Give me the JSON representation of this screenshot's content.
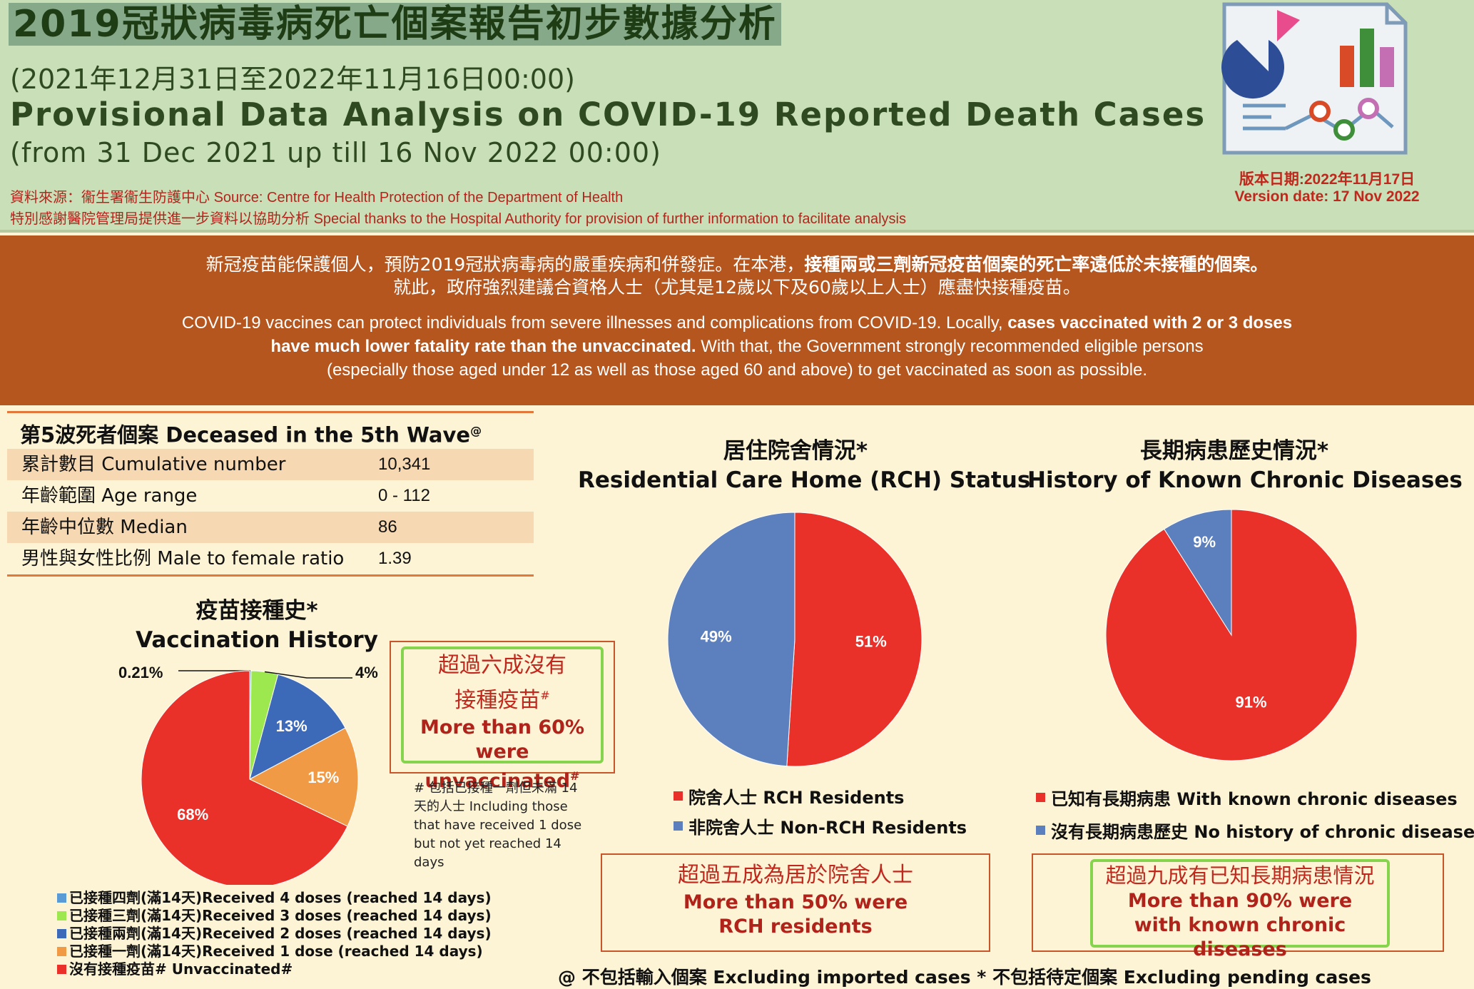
{
  "header": {
    "title_zh": "2019冠狀病毒病死亡個案報告初步數據分析",
    "period_zh": "(2021年12月31日至2022年11月16日00:00)",
    "title_en": "Provisional Data Analysis on COVID-19 Reported Death Cases",
    "period_en": "(from 31 Dec 2021 up till 16 Nov 2022 00:00)",
    "source_zh": "資料來源：衞生署衞生防護中心",
    "source_en": "Source: Centre for Health Protection of the Department of Health",
    "thanks_zh": "特別感謝醫院管理局提供進一步資料以協助分析",
    "thanks_en": "Special thanks to the Hospital Authority for provision of further information to facilitate analysis",
    "version_zh": "版本日期:2022年11月17日",
    "version_en": "Version date: 17 Nov 2022",
    "icon": "report-chart-icon"
  },
  "banner": {
    "zh_line1_a": "新冠疫苗能保護個人，預防2019冠狀病毒病的嚴重疾病和併發症。在本港，",
    "zh_line1_b": "接種兩或三劑新冠疫苗個案的死亡率遠低於未接種的個案。",
    "zh_line2": "就此，政府強烈建議合資格人士（尤其是12歲以下及60歲以上人士）應盡快接種疫苗。",
    "en_line1_a": "COVID-19 vaccines can protect individuals from severe illnesses and complications from COVID-19. Locally, ",
    "en_line1_b": "cases vaccinated with 2 or 3 doses",
    "en_line2_a": "have much lower fatality rate than the unvaccinated.",
    "en_line2_b": " With that, the Government strongly recommended eligible persons",
    "en_line3": "(especially those aged under 12 as well as those aged 60 and above) to get vaccinated as soon as possible."
  },
  "stats": {
    "heading": "第5波死者個案 Deceased in the 5th Wave",
    "heading_mark": "@",
    "rows": [
      {
        "label": "累計數目 Cumulative number",
        "value": "10,341"
      },
      {
        "label": "年齡範圍 Age range",
        "value": "0 - 112"
      },
      {
        "label": "年齡中位數 Median",
        "value": "86"
      },
      {
        "label": "男性與女性比例 Male to female ratio",
        "value": "1.39"
      }
    ]
  },
  "chart_data": [
    {
      "type": "pie",
      "title": "疫苗接種史* Vaccination History",
      "title_zh": "疫苗接種史*",
      "title_en": "Vaccination History",
      "slices": [
        {
          "label": "已接種四劑(滿14天)Received 4 doses (reached 14 days)",
          "value": 0.21,
          "display": "0.21%",
          "color": "#5b9bd5"
        },
        {
          "label": "已接種三劑(滿14天)Received 3 doses (reached 14 days)",
          "value": 4,
          "display": "4%",
          "color": "#9de84f"
        },
        {
          "label": "已接種兩劑(滿14天)Received 2 doses (reached 14 days)",
          "value": 13,
          "display": "13%",
          "color": "#3d6ab8"
        },
        {
          "label": "已接種一劑(滿14天)Received 1 dose (reached 14 days)",
          "value": 15,
          "display": "15%",
          "color": "#f09a45"
        },
        {
          "label": "沒有接種疫苗# Unvaccinated#",
          "value": 68,
          "display": "68%",
          "color": "#e9312a"
        }
      ],
      "legend": "bottom-left"
    },
    {
      "type": "pie",
      "title": "居住院舍情況* Residential Care Home (RCH) Status",
      "title_zh": "居住院舍情況*",
      "title_en": "Residential Care Home (RCH) Status",
      "slices": [
        {
          "label": "院舍人士 RCH Residents",
          "value": 51,
          "display": "51%",
          "color": "#e9312a"
        },
        {
          "label": "非院舍人士 Non-RCH Residents",
          "value": 49,
          "display": "49%",
          "color": "#5b80bd"
        }
      ],
      "legend": "bottom"
    },
    {
      "type": "pie",
      "title": "長期病患歷史情況* History of Known Chronic Diseases",
      "title_zh": "長期病患歷史情況*",
      "title_en": "History of Known Chronic Diseases",
      "slices": [
        {
          "label": "已知有長期病患 With known chronic diseases",
          "value": 91,
          "display": "91%",
          "color": "#e9312a"
        },
        {
          "label": "沒有長期病患歷史 No history of chronic diseases",
          "value": 9,
          "display": "9%",
          "color": "#5b80bd"
        }
      ],
      "legend": "bottom"
    }
  ],
  "highlights": {
    "vacc_zh1": "超過六成沒有",
    "vacc_zh2": "接種疫苗",
    "vacc_zh2_mark": "#",
    "vacc_en1": "More than 60%",
    "vacc_en2": "were unvaccinated",
    "vacc_en2_mark": "#",
    "rch_zh": "超過五成為居於院舍人士",
    "rch_en1": "More than 50% were",
    "rch_en2": "RCH residents",
    "chronic_zh": "超過九成有已知長期病患情況",
    "chronic_en1": "More than 90% were",
    "chronic_en2": "with known chronic diseases"
  },
  "note": "# 包括已接種一劑但未滿 14 天的人士 Including those that have received 1 dose but not yet reached 14 days",
  "footnote": "@ 不包括輸入個案 Excluding imported cases   * 不包括待定個案 Excluding pending cases"
}
